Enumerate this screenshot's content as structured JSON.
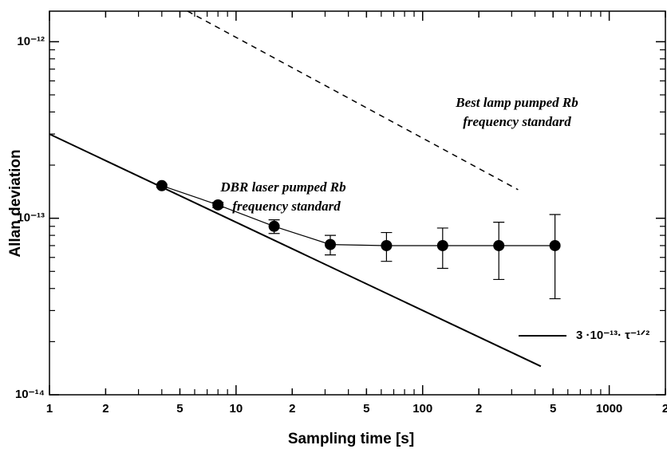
{
  "chart_data": {
    "type": "scatter",
    "x_label": "Sampling time [s]",
    "y_label": "Allan deviation",
    "log_x": true,
    "log_y": true,
    "xlim": [
      1,
      2000
    ],
    "ylim": [
      1e-14,
      1.49e-12
    ],
    "xticks": [
      1,
      2,
      5,
      10,
      {
        "value": 20,
        "label": "2"
      },
      {
        "value": 50,
        "label": "5"
      },
      100,
      {
        "value": 200,
        "label": "2"
      },
      {
        "value": 500,
        "label": "5"
      },
      1000,
      {
        "value": 2000,
        "label": "2"
      }
    ],
    "xminorticks": [
      3,
      4,
      6,
      7,
      8,
      9,
      30,
      40,
      60,
      70,
      80,
      90,
      300,
      400,
      600,
      700,
      800,
      900
    ],
    "yticks": [
      {
        "value": 1e-14,
        "label": "10⁻¹⁴"
      },
      {
        "value": 1e-13,
        "label": "10⁻¹³"
      },
      {
        "value": 1e-12,
        "label": "10⁻¹²"
      }
    ],
    "yminorticks": [
      2e-14,
      3e-14,
      4e-14,
      5e-14,
      6e-14,
      7e-14,
      8e-14,
      9e-14,
      2e-13,
      3e-13,
      4e-13,
      5e-13,
      6e-13,
      7e-13,
      8e-13,
      9e-13
    ],
    "series": [
      {
        "kind": "points",
        "color": "#000000",
        "x": [
          4,
          8,
          16,
          32,
          64,
          128,
          256,
          512
        ],
        "values": [
          1.53e-13,
          1.19e-13,
          9e-14,
          7.1e-14,
          7e-14,
          7e-14,
          7e-14,
          7e-14
        ],
        "errors": [
          3e-15,
          4e-15,
          8e-15,
          9e-15,
          1.3e-14,
          1.8e-14,
          2.5e-14,
          3.5e-14
        ]
      },
      {
        "kind": "line",
        "name": "3 ·10⁻¹³· τ⁻¹ᐟ²",
        "color": "#000000",
        "x": [
          1,
          430
        ],
        "values": [
          3e-13,
          1.45e-14
        ]
      },
      {
        "kind": "dashed",
        "color": "#000000",
        "x": [
          5.5,
          325
        ],
        "values": [
          1.49e-12,
          1.45e-13
        ]
      }
    ],
    "annotations": [
      [
        "DBR laser pumped Rb",
        "frequency standard"
      ],
      [
        "Best lamp pumped Rb",
        "frequency standard"
      ]
    ]
  }
}
